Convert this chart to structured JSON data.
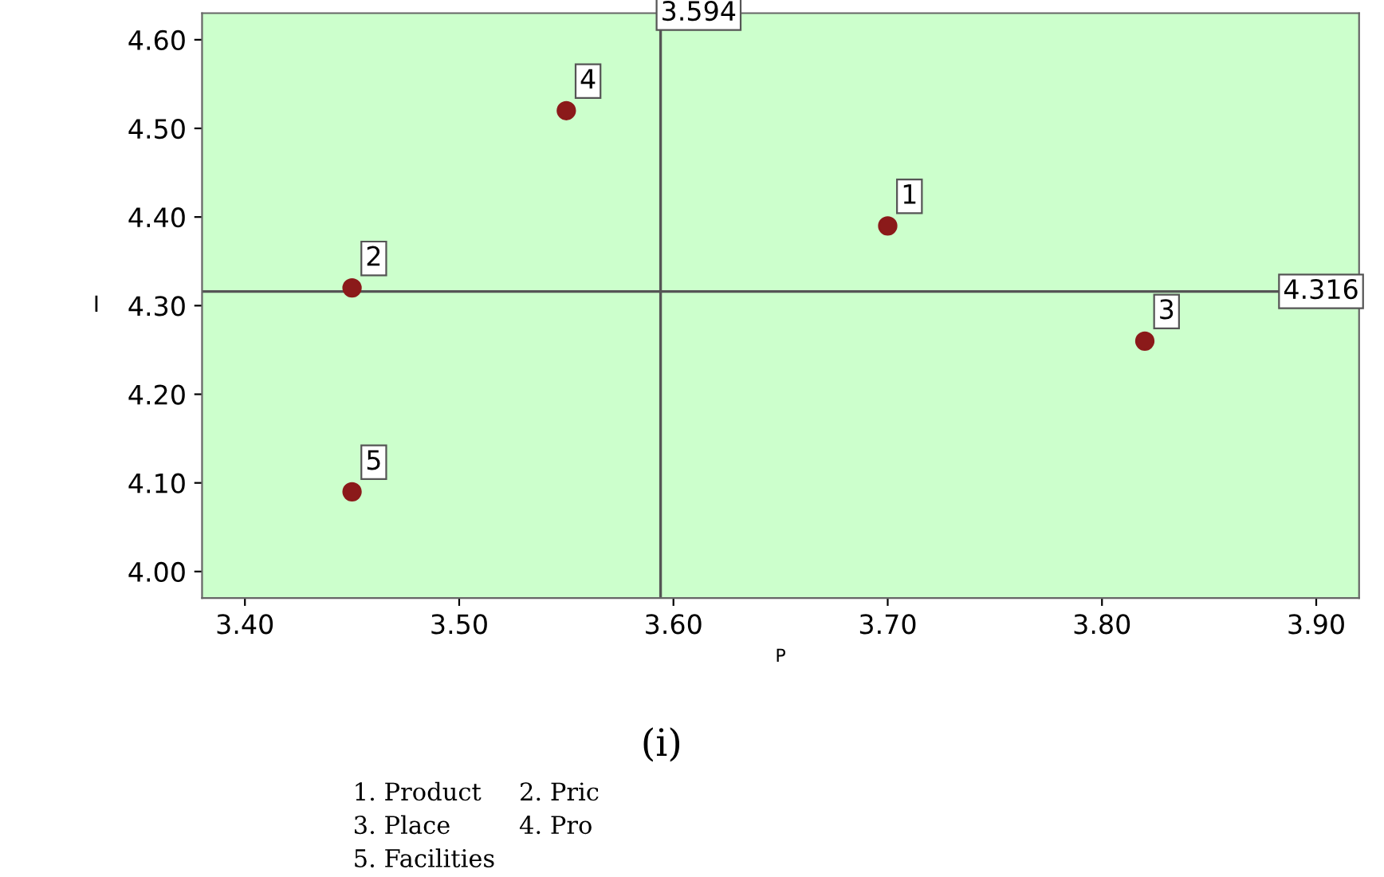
{
  "chart_data": {
    "type": "scatter",
    "xlabel": "P",
    "ylabel": "I",
    "x": [
      3.7,
      3.45,
      3.82,
      3.55,
      3.45
    ],
    "series": [
      {
        "color": "#8b1a1a",
        "values": [
          4.39,
          4.32,
          4.26,
          4.52,
          4.09
        ]
      }
    ],
    "marker": "circle",
    "xlim": [
      3.38,
      3.92
    ],
    "xticks": [
      {
        "value": 3.4,
        "label": "3.40"
      },
      {
        "value": 3.5,
        "label": "3.50"
      },
      {
        "value": 3.6,
        "label": "3.60"
      },
      {
        "value": 3.7,
        "label": "3.70"
      },
      {
        "value": 3.8,
        "label": "3.80"
      },
      {
        "value": 3.9,
        "label": "3.90"
      }
    ],
    "ylim": [
      3.97,
      4.63
    ],
    "yticks": [
      {
        "value": 4.0,
        "label": "4.00"
      },
      {
        "value": 4.1,
        "label": "4.10"
      },
      {
        "value": 4.2,
        "label": "4.20"
      },
      {
        "value": 4.3,
        "label": "4.30"
      },
      {
        "value": 4.4,
        "label": "4.40"
      },
      {
        "value": 4.5,
        "label": "4.50"
      },
      {
        "value": 4.6,
        "label": "4.60"
      }
    ],
    "ref_lines": [
      {
        "axis": "x",
        "value": 3.594,
        "label": "3.594",
        "color": "#555555"
      },
      {
        "axis": "y",
        "value": 4.316,
        "label": "4.316",
        "color": "#555555"
      }
    ],
    "annotations": [
      {
        "text": "1",
        "x": 3.7,
        "y": 4.39
      },
      {
        "text": "2",
        "x": 3.45,
        "y": 4.32
      },
      {
        "text": "3",
        "x": 3.82,
        "y": 4.26
      },
      {
        "text": "4",
        "x": 3.55,
        "y": 4.52
      },
      {
        "text": "5",
        "x": 3.45,
        "y": 4.09
      },
      "(i)",
      "1. Product",
      "2. Pric",
      "3. Place",
      "4. Pro",
      "5. Facilities"
    ],
    "grid": false,
    "legend": false
  }
}
